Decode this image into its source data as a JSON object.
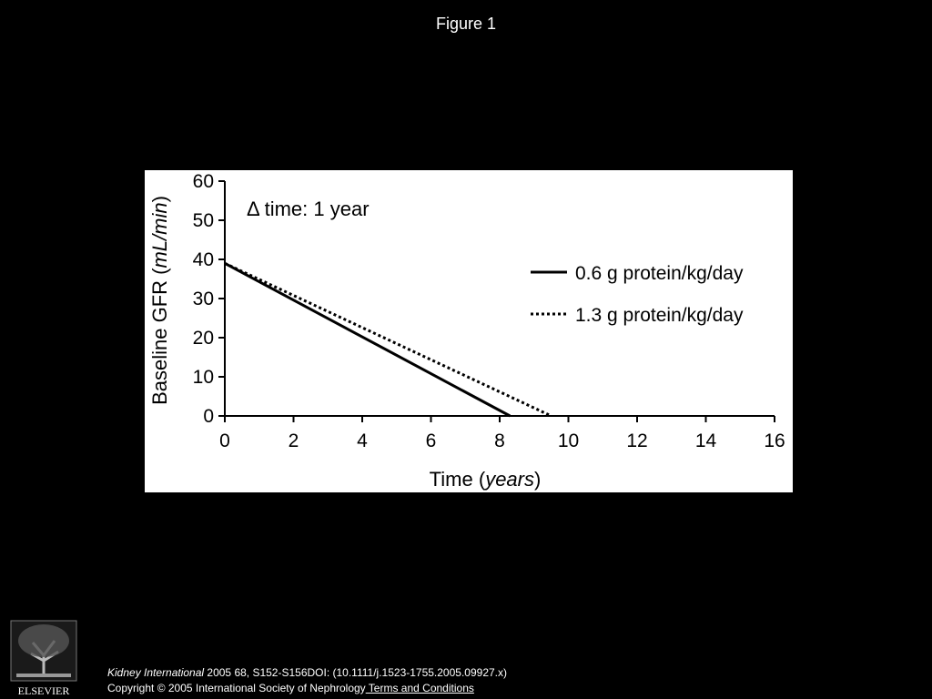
{
  "slide": {
    "title": "Figure 1"
  },
  "chart_data": {
    "type": "line",
    "title": "",
    "annotation": "Δ time: 1 year",
    "xlabel": {
      "prefix": "Time (",
      "italic": "years",
      "suffix": ")"
    },
    "ylabel": {
      "prefix": "Baseline GFR (",
      "italic": "mL/min",
      "suffix": ")"
    },
    "xlim": [
      0,
      16
    ],
    "ylim": [
      0,
      60
    ],
    "xticks": [
      "0",
      "2",
      "4",
      "6",
      "8",
      "10",
      "12",
      "14",
      "16"
    ],
    "yticks": [
      "0",
      "10",
      "20",
      "30",
      "40",
      "50",
      "60"
    ],
    "grid": false,
    "legend_position": "right",
    "series": [
      {
        "name": "0.6 g protein/kg/day",
        "style": "solid",
        "x": [
          0,
          8.3
        ],
        "y": [
          39,
          0
        ]
      },
      {
        "name": "1.3 g protein/kg/day",
        "style": "dotted",
        "x": [
          0,
          9.5
        ],
        "y": [
          39,
          0
        ]
      }
    ]
  },
  "citation": {
    "journal": "Kidney International",
    "details": " 2005 68, S152-S156DOI: (10.1111/j.1523-1755.2005.09927.x)"
  },
  "copyright": {
    "text": "Copyright © 2005 International Society of Nephrology",
    "link_label": " Terms and Conditions"
  },
  "publisher": {
    "logo_text": "ELSEVIER"
  },
  "colors": {
    "background": "#000000",
    "panel": "#ffffff",
    "ink": "#000000"
  }
}
